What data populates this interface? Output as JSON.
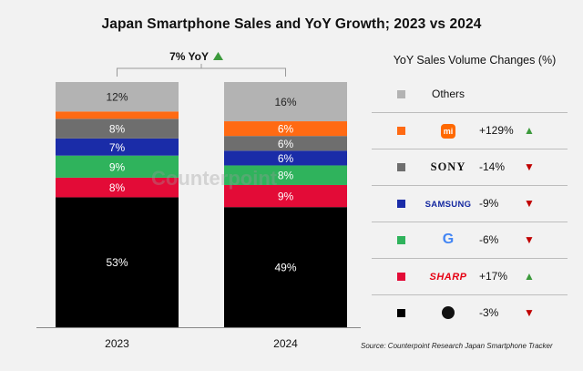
{
  "page": {
    "title": "Japan Smartphone Sales and YoY Growth; 2023 vs 2024",
    "watermark": "Counterpoint",
    "source": "Source: Counterpoint Research Japan Smartphone Tracker"
  },
  "colors": {
    "Apple": "#000000",
    "Sharp": "#e30b37",
    "Google": "#2fb35c",
    "Samsung": "#1a2ca8",
    "Sony": "#6e6e6e",
    "Xiaomi": "#ff6a13",
    "Others": "#b3b3b3",
    "up": "#3c9a3c",
    "down": "#c00000"
  },
  "chart_data": {
    "type": "bar",
    "stacked": true,
    "percent_stacked": true,
    "categories": [
      "2023",
      "2024"
    ],
    "series": [
      {
        "id": "Apple",
        "values": [
          53,
          49
        ],
        "labels": [
          "53%",
          "49%"
        ]
      },
      {
        "id": "Sharp",
        "values": [
          8,
          9
        ],
        "labels": [
          "8%",
          "9%"
        ]
      },
      {
        "id": "Google",
        "values": [
          9,
          8
        ],
        "labels": [
          "9%",
          "8%"
        ]
      },
      {
        "id": "Samsung",
        "values": [
          7,
          6
        ],
        "labels": [
          "7%",
          "6%"
        ]
      },
      {
        "id": "Sony",
        "values": [
          8,
          6
        ],
        "labels": [
          "8%",
          "6%"
        ]
      },
      {
        "id": "Xiaomi",
        "values": [
          3,
          6
        ],
        "labels": [
          "",
          "6%"
        ]
      },
      {
        "id": "Others",
        "values": [
          12,
          16
        ],
        "labels": [
          "12%",
          "16%"
        ]
      }
    ],
    "total_change_annotation": {
      "text": "7% YoY",
      "direction": "up"
    },
    "ylim": [
      0,
      100
    ]
  },
  "legend": {
    "title": "YoY Sales Volume Changes (%)",
    "rows": [
      {
        "id": "Others",
        "brand": "Others",
        "change": "",
        "direction": ""
      },
      {
        "id": "Xiaomi",
        "brand": "mi",
        "change": "+129%",
        "direction": "up"
      },
      {
        "id": "Sony",
        "brand": "SONY",
        "change": "-14%",
        "direction": "down"
      },
      {
        "id": "Samsung",
        "brand": "SAMSUNG",
        "change": "-9%",
        "direction": "down"
      },
      {
        "id": "Google",
        "brand": "G",
        "change": "-6%",
        "direction": "down"
      },
      {
        "id": "Sharp",
        "brand": "SHARP",
        "change": "+17%",
        "direction": "up"
      },
      {
        "id": "Apple",
        "brand": "",
        "change": "-3%",
        "direction": "down"
      }
    ]
  },
  "icons": {
    "up": "triangle-up-icon",
    "down": "triangle-down-icon",
    "apple": "apple-logo-icon",
    "xiaomi": "xiaomi-logo-icon"
  }
}
